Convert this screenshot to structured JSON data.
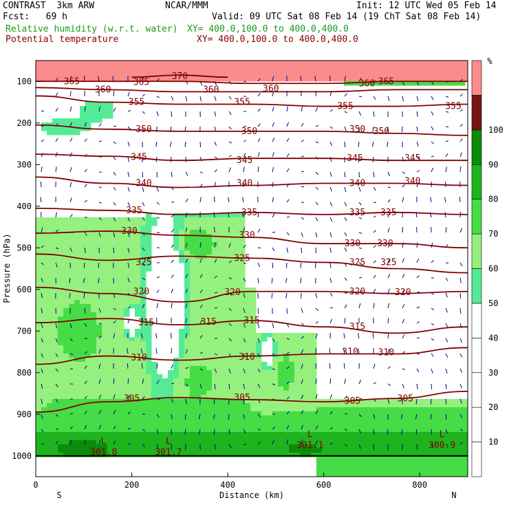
{
  "header": {
    "model": "CONTRAST  3km ARW",
    "center": "NCAR/MMM",
    "init": "Init: 12 UTC Wed 05 Feb 14",
    "fcst": "Fcst:   69 h",
    "valid": "Valid: 09 UTC Sat 08 Feb 14 (19 ChT Sat 08 Feb 14)",
    "field1": "Relative humidity (w.r.t. water)",
    "field1_xy": "XY= 400.0,100.0 to 400.0,400.0",
    "field2": "Potential temperature",
    "field2_xy": "XY= 400.0,100.0 to 400.0,400.0"
  },
  "colors": {
    "rh_bins": [
      "#ffffff",
      "#ffffff",
      "#ffffff",
      "#ffffff",
      "#ffffff",
      "#55eb96",
      "#96f07d",
      "#46dc46",
      "#1eb41e",
      "#0a8c0a",
      "#781414",
      "#fa8c8c"
    ],
    "theta": "#800000",
    "wind": "#00008b",
    "green_text": "#1a9b1a",
    "maroon_text": "#8b0000"
  },
  "chart_data": {
    "type": "heatmap",
    "title": "Relative humidity (w.r.t. water) / Potential temperature cross-section",
    "xlabel": "Distance (km)",
    "ylabel": "Pressure (hPa)",
    "x_ticks": [
      0,
      200,
      400,
      600,
      800
    ],
    "y_ticks": [
      100,
      200,
      300,
      400,
      500,
      600,
      700,
      800,
      900,
      1000
    ],
    "xlim": [
      0,
      900
    ],
    "ylim": [
      1050,
      50
    ],
    "end_labels": {
      "left": "S",
      "right": "N"
    },
    "colorbar": {
      "unit": "%",
      "ticks": [
        10,
        20,
        30,
        40,
        50,
        60,
        70,
        80,
        90,
        100
      ],
      "boundaries": [
        0,
        10,
        20,
        30,
        40,
        50,
        60,
        70,
        80,
        90,
        100,
        110,
        120
      ]
    },
    "theta_contours": [
      {
        "value": 305,
        "points": [
          [
            0,
            895
          ],
          [
            150,
            870
          ],
          [
            300,
            860
          ],
          [
            450,
            865
          ],
          [
            600,
            870
          ],
          [
            750,
            862
          ],
          [
            900,
            845
          ]
        ],
        "labels": [
          [
            200,
            862
          ],
          [
            430,
            860
          ],
          [
            660,
            868
          ],
          [
            770,
            862
          ]
        ]
      },
      {
        "value": 310,
        "points": [
          [
            0,
            780
          ],
          [
            150,
            760
          ],
          [
            300,
            770
          ],
          [
            450,
            760
          ],
          [
            600,
            755
          ],
          [
            750,
            755
          ],
          [
            900,
            740
          ]
        ],
        "labels": [
          [
            215,
            764
          ],
          [
            440,
            762
          ],
          [
            655,
            750
          ],
          [
            730,
            752
          ]
        ]
      },
      {
        "value": 315,
        "points": [
          [
            0,
            680
          ],
          [
            150,
            670
          ],
          [
            300,
            685
          ],
          [
            450,
            675
          ],
          [
            600,
            690
          ],
          [
            750,
            705
          ],
          [
            900,
            690
          ]
        ],
        "labels": [
          [
            230,
            680
          ],
          [
            360,
            678
          ],
          [
            450,
            675
          ],
          [
            670,
            690
          ]
        ]
      },
      {
        "value": 320,
        "points": [
          [
            0,
            595
          ],
          [
            150,
            610
          ],
          [
            300,
            630
          ],
          [
            450,
            605
          ],
          [
            600,
            605
          ],
          [
            750,
            610
          ],
          [
            900,
            605
          ]
        ],
        "labels": [
          [
            220,
            605
          ],
          [
            410,
            607
          ],
          [
            670,
            605
          ],
          [
            765,
            607
          ]
        ]
      },
      {
        "value": 325,
        "points": [
          [
            0,
            515
          ],
          [
            150,
            530
          ],
          [
            300,
            520
          ],
          [
            450,
            525
          ],
          [
            600,
            535
          ],
          [
            750,
            550
          ],
          [
            900,
            560
          ]
        ],
        "labels": [
          [
            225,
            535
          ],
          [
            430,
            525
          ],
          [
            670,
            535
          ],
          [
            735,
            535
          ]
        ]
      },
      {
        "value": 330,
        "points": [
          [
            0,
            465
          ],
          [
            150,
            460
          ],
          [
            300,
            470
          ],
          [
            450,
            475
          ],
          [
            600,
            490
          ],
          [
            750,
            490
          ],
          [
            900,
            500
          ]
        ],
        "labels": [
          [
            195,
            460
          ],
          [
            440,
            470
          ],
          [
            660,
            490
          ],
          [
            728,
            490
          ]
        ]
      },
      {
        "value": 335,
        "points": [
          [
            0,
            405
          ],
          [
            150,
            410
          ],
          [
            300,
            420
          ],
          [
            450,
            415
          ],
          [
            600,
            420
          ],
          [
            750,
            415
          ],
          [
            900,
            420
          ]
        ],
        "labels": [
          [
            205,
            410
          ],
          [
            445,
            415
          ],
          [
            670,
            415
          ],
          [
            735,
            415
          ]
        ]
      },
      {
        "value": 340,
        "points": [
          [
            0,
            330
          ],
          [
            150,
            345
          ],
          [
            300,
            355
          ],
          [
            450,
            350
          ],
          [
            600,
            345
          ],
          [
            750,
            345
          ],
          [
            900,
            350
          ]
        ],
        "labels": [
          [
            225,
            345
          ],
          [
            435,
            345
          ],
          [
            670,
            345
          ],
          [
            785,
            340
          ]
        ]
      },
      {
        "value": 345,
        "points": [
          [
            0,
            275
          ],
          [
            150,
            280
          ],
          [
            300,
            290
          ],
          [
            450,
            285
          ],
          [
            600,
            285
          ],
          [
            750,
            290
          ],
          [
            900,
            290
          ]
        ],
        "labels": [
          [
            215,
            282
          ],
          [
            435,
            290
          ],
          [
            665,
            285
          ],
          [
            785,
            285
          ]
        ]
      },
      {
        "value": 350,
        "points": [
          [
            0,
            205
          ],
          [
            150,
            215
          ],
          [
            300,
            220
          ],
          [
            450,
            220
          ],
          [
            600,
            220
          ],
          [
            750,
            225
          ],
          [
            900,
            230
          ]
        ],
        "labels": [
          [
            225,
            215
          ],
          [
            445,
            220
          ],
          [
            670,
            215
          ],
          [
            720,
            220
          ]
        ]
      },
      {
        "value": 355,
        "points": [
          [
            0,
            135
          ],
          [
            150,
            150
          ],
          [
            300,
            155
          ],
          [
            450,
            155
          ],
          [
            600,
            160
          ],
          [
            750,
            160
          ],
          [
            900,
            155
          ]
        ],
        "labels": [
          [
            210,
            150
          ],
          [
            430,
            150
          ],
          [
            645,
            160
          ],
          [
            870,
            160
          ]
        ]
      },
      {
        "value": 360,
        "points": [
          [
            0,
            115
          ],
          [
            150,
            120
          ],
          [
            300,
            125
          ],
          [
            450,
            125
          ],
          [
            600,
            125
          ],
          [
            750,
            120
          ],
          [
            900,
            120
          ]
        ],
        "labels": [
          [
            140,
            120
          ],
          [
            365,
            120
          ],
          [
            490,
            118
          ],
          [
            690,
            105
          ]
        ]
      },
      {
        "value": 365,
        "points": [
          [
            0,
            100
          ],
          [
            150,
            100
          ],
          [
            300,
            100
          ],
          [
            450,
            105
          ],
          [
            600,
            105
          ],
          [
            750,
            100
          ],
          [
            900,
            100
          ]
        ],
        "labels": [
          [
            75,
            100
          ],
          [
            220,
            102
          ],
          [
            730,
            100
          ]
        ]
      },
      {
        "value": 370,
        "points": [
          [
            200,
            90
          ],
          [
            300,
            85
          ],
          [
            400,
            90
          ]
        ],
        "labels": [
          [
            300,
            88
          ]
        ]
      }
    ],
    "surface_lows": [
      {
        "label": "L",
        "value": "301.8",
        "x": 130,
        "p": 985
      },
      {
        "label": "L",
        "value": "301.7",
        "x": 265,
        "p": 985
      },
      {
        "label": "L",
        "value": "301.1",
        "x": 560,
        "p": 968
      },
      {
        "label": "L",
        "value": "300.9",
        "x": 835,
        "p": 968
      }
    ]
  }
}
